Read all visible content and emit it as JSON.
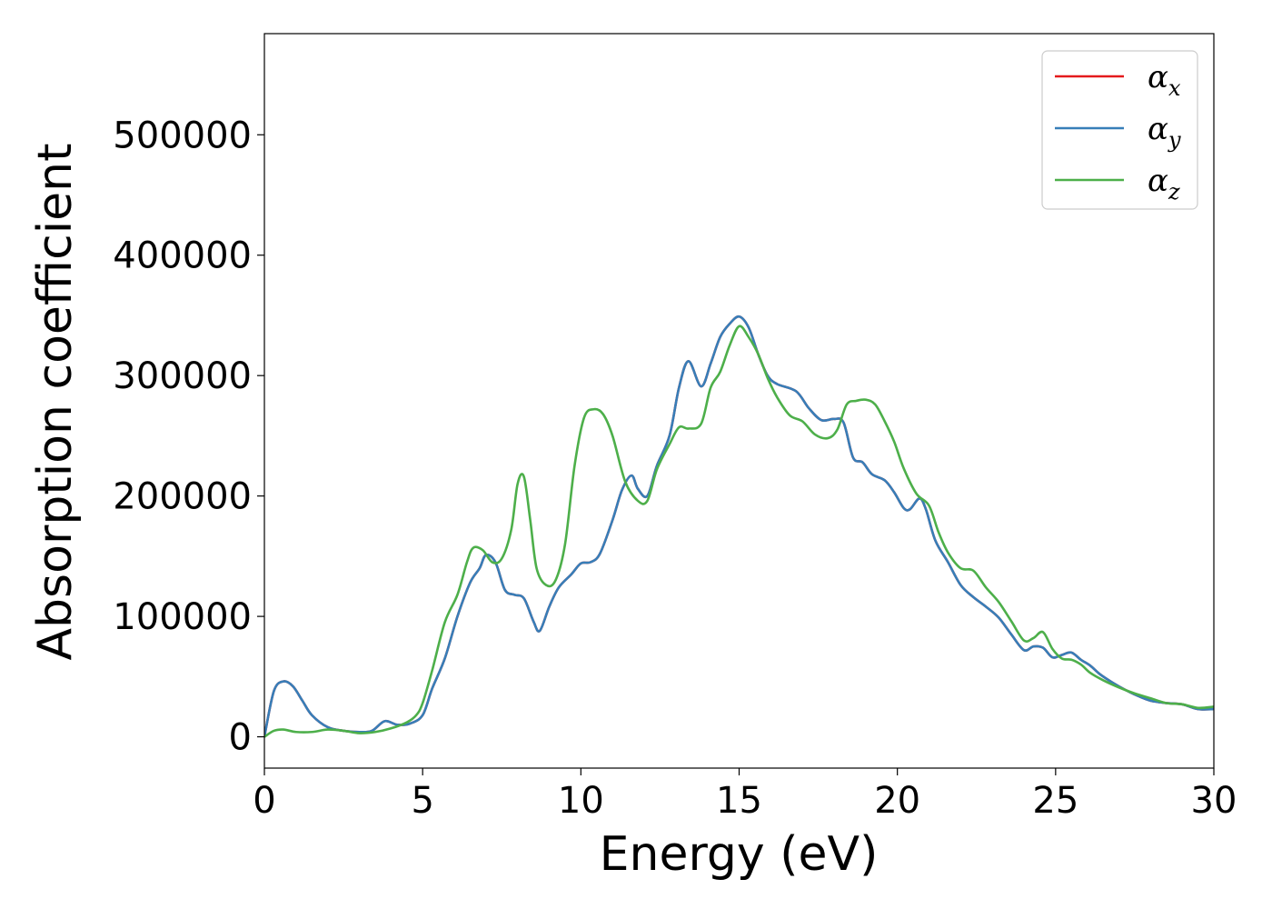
{
  "chart_data": {
    "type": "line",
    "xlabel": "Energy (eV)",
    "ylabel": "Absorption coefficient",
    "xlim": [
      0,
      30
    ],
    "ylim": [
      -26000,
      584000
    ],
    "xticks": [
      0,
      5,
      10,
      15,
      20,
      25,
      30
    ],
    "yticks": [
      0,
      100000,
      200000,
      300000,
      400000,
      500000
    ],
    "xtick_labels": [
      "0",
      "5",
      "10",
      "15",
      "20",
      "25",
      "30"
    ],
    "ytick_labels": [
      "0",
      "100000",
      "200000",
      "300000",
      "400000",
      "500000"
    ],
    "grid": false,
    "legend_position": "top-right",
    "series": [
      {
        "name": "α_x",
        "symbol": "α",
        "sub": "x",
        "color": "#e41a1c",
        "x": [
          0,
          0.3,
          0.6,
          0.9,
          1.2,
          1.5,
          2,
          2.5,
          3,
          3.4,
          3.8,
          4.2,
          4.6,
          5,
          5.3,
          5.7,
          6.1,
          6.5,
          6.8,
          7,
          7.3,
          7.6,
          7.9,
          8.2,
          8.5,
          8.7,
          9,
          9.3,
          9.7,
          10,
          10.3,
          10.6,
          11,
          11.3,
          11.6,
          11.8,
          12.1,
          12.4,
          12.8,
          13.1,
          13.4,
          13.8,
          14.1,
          14.4,
          14.7,
          15,
          15.3,
          15.6,
          15.9,
          16.2,
          16.8,
          17.2,
          17.6,
          18,
          18.3,
          18.6,
          18.9,
          19.2,
          19.6,
          19.9,
          20.2,
          20.4,
          20.7,
          20.9,
          21.2,
          21.6,
          22,
          22.4,
          22.8,
          23.2,
          23.6,
          24,
          24.3,
          24.6,
          24.9,
          25.2,
          25.5,
          25.8,
          26.1,
          26.4,
          26.8,
          27.2,
          27.6,
          28,
          28.5,
          29,
          29.5,
          30
        ],
        "y": [
          0,
          38000,
          46000,
          42000,
          30000,
          18000,
          8000,
          5000,
          4000,
          5000,
          13000,
          10000,
          11000,
          18000,
          40000,
          65000,
          100000,
          128000,
          140000,
          151000,
          145000,
          122000,
          118000,
          115000,
          96000,
          88000,
          108000,
          124000,
          135000,
          144000,
          145000,
          152000,
          180000,
          205000,
          217000,
          206000,
          200000,
          225000,
          250000,
          290000,
          312000,
          291000,
          310000,
          332000,
          343000,
          349000,
          340000,
          318000,
          300000,
          293000,
          287000,
          273000,
          263000,
          264000,
          261000,
          232000,
          228000,
          218000,
          213000,
          203000,
          190000,
          189000,
          198000,
          189000,
          163000,
          145000,
          126000,
          116000,
          108000,
          99000,
          85000,
          72000,
          75000,
          74000,
          66000,
          68000,
          70000,
          64000,
          59000,
          52000,
          45000,
          39000,
          34000,
          30000,
          28000,
          27000,
          23000,
          23000
        ]
      },
      {
        "name": "α_y",
        "symbol": "α",
        "sub": "y",
        "color": "#377eb8",
        "x": [
          0,
          0.3,
          0.6,
          0.9,
          1.2,
          1.5,
          2,
          2.5,
          3,
          3.4,
          3.8,
          4.2,
          4.6,
          5,
          5.3,
          5.7,
          6.1,
          6.5,
          6.8,
          7,
          7.3,
          7.6,
          7.9,
          8.2,
          8.5,
          8.7,
          9,
          9.3,
          9.7,
          10,
          10.3,
          10.6,
          11,
          11.3,
          11.6,
          11.8,
          12.1,
          12.4,
          12.8,
          13.1,
          13.4,
          13.8,
          14.1,
          14.4,
          14.7,
          15,
          15.3,
          15.6,
          15.9,
          16.2,
          16.8,
          17.2,
          17.6,
          18,
          18.3,
          18.6,
          18.9,
          19.2,
          19.6,
          19.9,
          20.2,
          20.4,
          20.7,
          20.9,
          21.2,
          21.6,
          22,
          22.4,
          22.8,
          23.2,
          23.6,
          24,
          24.3,
          24.6,
          24.9,
          25.2,
          25.5,
          25.8,
          26.1,
          26.4,
          26.8,
          27.2,
          27.6,
          28,
          28.5,
          29,
          29.5,
          30
        ],
        "y": [
          0,
          38000,
          46000,
          42000,
          30000,
          18000,
          8000,
          5000,
          4000,
          5000,
          13000,
          10000,
          11000,
          18000,
          40000,
          65000,
          100000,
          128000,
          140000,
          151000,
          145000,
          122000,
          118000,
          115000,
          96000,
          88000,
          108000,
          124000,
          135000,
          144000,
          145000,
          152000,
          180000,
          205000,
          217000,
          206000,
          200000,
          225000,
          250000,
          290000,
          312000,
          291000,
          310000,
          332000,
          343000,
          349000,
          340000,
          318000,
          300000,
          293000,
          287000,
          273000,
          263000,
          264000,
          261000,
          232000,
          228000,
          218000,
          213000,
          203000,
          190000,
          189000,
          198000,
          189000,
          163000,
          145000,
          126000,
          116000,
          108000,
          99000,
          85000,
          72000,
          75000,
          74000,
          66000,
          68000,
          70000,
          64000,
          59000,
          52000,
          45000,
          39000,
          34000,
          30000,
          28000,
          27000,
          23000,
          23000
        ]
      },
      {
        "name": "α_z",
        "symbol": "α",
        "sub": "z",
        "color": "#4daf4a",
        "x": [
          0,
          0.3,
          0.6,
          1,
          1.5,
          2,
          2.5,
          3,
          3.5,
          4,
          4.5,
          4.8,
          5,
          5.3,
          5.7,
          6.1,
          6.4,
          6.6,
          6.9,
          7.2,
          7.5,
          7.8,
          8,
          8.2,
          8.4,
          8.6,
          8.9,
          9.2,
          9.5,
          9.8,
          10.1,
          10.4,
          10.7,
          11,
          11.4,
          11.8,
          12.1,
          12.4,
          12.8,
          13.1,
          13.4,
          13.8,
          14.1,
          14.4,
          14.7,
          15,
          15.3,
          15.6,
          15.9,
          16.2,
          16.6,
          17,
          17.4,
          17.8,
          18.1,
          18.4,
          18.7,
          19,
          19.3,
          19.6,
          19.9,
          20.2,
          20.6,
          21,
          21.3,
          21.6,
          22,
          22.4,
          22.8,
          23.2,
          23.6,
          24,
          24.3,
          24.6,
          24.9,
          25.2,
          25.5,
          25.8,
          26.1,
          26.5,
          27,
          27.5,
          28,
          28.5,
          29,
          29.5,
          30
        ],
        "y": [
          0,
          5000,
          6000,
          4000,
          4000,
          6000,
          5000,
          3000,
          4000,
          7000,
          12000,
          18000,
          28000,
          55000,
          95000,
          118000,
          145000,
          157000,
          155000,
          145000,
          148000,
          172000,
          210000,
          216000,
          180000,
          140000,
          126000,
          130000,
          160000,
          225000,
          265000,
          272000,
          268000,
          250000,
          212000,
          196000,
          196000,
          222000,
          243000,
          257000,
          256000,
          260000,
          290000,
          303000,
          325000,
          341000,
          332000,
          318000,
          298000,
          282000,
          267000,
          262000,
          251000,
          248000,
          255000,
          276000,
          279000,
          280000,
          276000,
          262000,
          245000,
          223000,
          202000,
          192000,
          170000,
          153000,
          140000,
          138000,
          124000,
          112000,
          96000,
          80000,
          82000,
          87000,
          73000,
          65000,
          64000,
          60000,
          53000,
          47000,
          41000,
          36000,
          32000,
          28000,
          27000,
          24000,
          25000
        ]
      }
    ]
  }
}
